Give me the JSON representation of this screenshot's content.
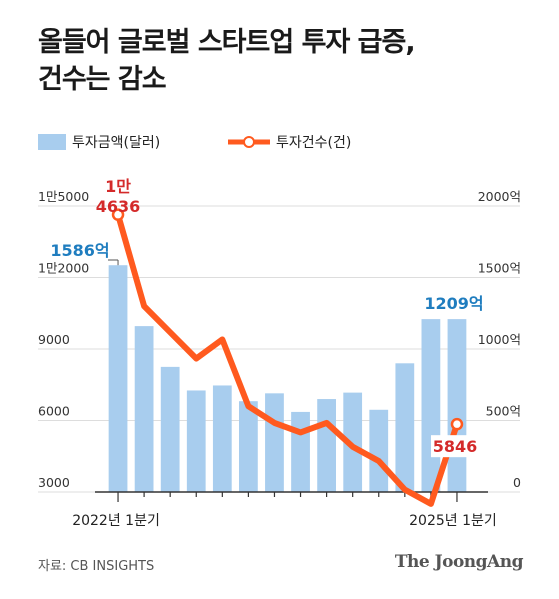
{
  "title_lines": [
    "올들어 글로벌 스타트업 투자 급증,",
    "건수는 감소"
  ],
  "legend": {
    "bar": "투자금액(달러)",
    "line": "투자건수(건)"
  },
  "colors": {
    "bar": "#a8cdee",
    "line": "#ff5a1f",
    "bar_label": "#1f7dbf",
    "line_label": "#d42a2a",
    "axis": "#333333",
    "grid": "#dddddd"
  },
  "source": "자료: CB INSIGHTS",
  "brand": "The JoongAng",
  "chart_data": {
    "type": "bar+line",
    "categories": [
      "2022년 1분기",
      "",
      "",
      "",
      "",
      "",
      "",
      "",
      "",
      "",
      "",
      "",
      "",
      "2025년 1분기"
    ],
    "x_tick_labels": [
      "2022년 1분기",
      "2025년 1분기"
    ],
    "series": [
      {
        "name": "투자금액(달러)",
        "type": "bar",
        "axis": "right",
        "values": [
          1586,
          1160,
          875,
          710,
          745,
          635,
          690,
          560,
          650,
          695,
          575,
          900,
          1209,
          1209
        ]
      },
      {
        "name": "투자건수(건)",
        "type": "line",
        "axis": "left",
        "values": [
          14636,
          10800,
          9700,
          8600,
          9400,
          6600,
          5900,
          5500,
          5900,
          4900,
          4300,
          3100,
          2500,
          5846
        ]
      }
    ],
    "left_axis": {
      "ylim": [
        3000,
        15000
      ],
      "ticks": [
        "3000",
        "6000",
        "9000",
        "1만2000",
        "1만5000"
      ]
    },
    "right_axis": {
      "ylim": [
        0,
        2000
      ],
      "ticks": [
        "0",
        "500억",
        "1000억",
        "1500억",
        "2000억"
      ]
    },
    "annotations": {
      "first_bar": "1586억",
      "last_bar": "1209억",
      "first_line_line1": "1만",
      "first_line_line2": "4636",
      "last_line": "5846"
    }
  }
}
